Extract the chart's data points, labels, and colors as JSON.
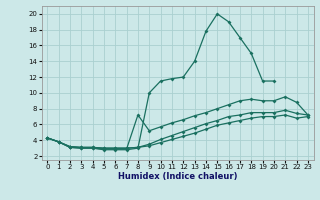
{
  "xlabel": "Humidex (Indice chaleur)",
  "background_color": "#cce8e8",
  "grid_color": "#aad0d0",
  "line_color": "#1a7060",
  "xlim_min": -0.5,
  "xlim_max": 23.5,
  "ylim_min": 1.5,
  "ylim_max": 21.0,
  "xticks": [
    0,
    1,
    2,
    3,
    4,
    5,
    6,
    7,
    8,
    9,
    10,
    11,
    12,
    13,
    14,
    15,
    16,
    17,
    18,
    19,
    20,
    21,
    22,
    23
  ],
  "yticks": [
    2,
    4,
    6,
    8,
    10,
    12,
    14,
    16,
    18,
    20
  ],
  "line1_x": [
    0,
    1,
    2,
    3,
    4,
    5,
    6,
    7,
    8,
    9,
    10,
    11,
    12,
    13,
    14,
    15,
    16,
    17,
    18,
    19,
    20
  ],
  "line1_y": [
    4.3,
    3.8,
    3.1,
    3.0,
    3.0,
    2.8,
    2.8,
    2.8,
    3.0,
    10.0,
    11.5,
    11.8,
    12.0,
    14.0,
    17.8,
    20.0,
    19.0,
    17.0,
    15.0,
    11.5,
    11.5
  ],
  "line2_x": [
    0,
    1,
    2,
    3,
    4,
    5,
    6,
    7,
    8,
    9,
    10,
    11,
    12,
    13,
    14,
    15,
    16,
    17,
    18,
    19,
    20,
    21,
    22,
    23
  ],
  "line2_y": [
    4.3,
    3.8,
    3.1,
    3.0,
    3.0,
    2.9,
    2.9,
    2.9,
    7.2,
    5.2,
    5.7,
    6.2,
    6.6,
    7.1,
    7.5,
    8.0,
    8.5,
    9.0,
    9.2,
    9.0,
    9.0,
    9.5,
    8.8,
    7.2
  ],
  "line3_x": [
    0,
    1,
    2,
    3,
    4,
    5,
    6,
    7,
    8,
    9,
    10,
    11,
    12,
    13,
    14,
    15,
    16,
    17,
    18,
    19,
    20,
    21,
    22,
    23
  ],
  "line3_y": [
    4.3,
    3.8,
    3.2,
    3.1,
    3.1,
    3.0,
    3.0,
    3.0,
    3.1,
    3.5,
    4.1,
    4.6,
    5.1,
    5.6,
    6.1,
    6.5,
    7.0,
    7.2,
    7.5,
    7.5,
    7.5,
    7.8,
    7.4,
    7.2
  ],
  "line4_x": [
    0,
    1,
    2,
    3,
    4,
    5,
    6,
    7,
    8,
    9,
    10,
    11,
    12,
    13,
    14,
    15,
    16,
    17,
    18,
    19,
    20,
    21,
    22,
    23
  ],
  "line4_y": [
    4.3,
    3.8,
    3.2,
    3.1,
    3.1,
    3.0,
    3.0,
    3.0,
    3.1,
    3.3,
    3.7,
    4.1,
    4.5,
    4.9,
    5.4,
    5.9,
    6.2,
    6.5,
    6.8,
    7.0,
    7.0,
    7.2,
    6.8,
    7.0
  ]
}
